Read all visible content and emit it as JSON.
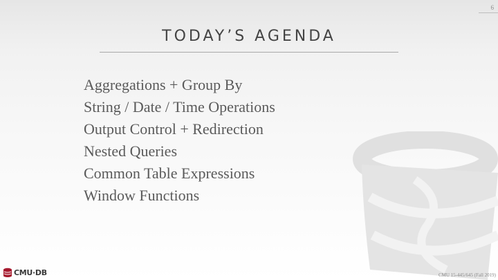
{
  "slide": {
    "number": "6",
    "title": "TODAY’S AGENDA",
    "items": [
      "Aggregations + Group By",
      "String / Date / Time Operations",
      "Output Control + Redirection",
      "Nested Queries",
      "Common Table Expressions",
      "Window Functions"
    ]
  },
  "footer": {
    "logo_text": "CMU·DB",
    "course_label": "CMU 15-445/645 (Fall 2019)"
  },
  "colors": {
    "logo_red": "#a6192e",
    "watermark": "#e2e2e2"
  }
}
